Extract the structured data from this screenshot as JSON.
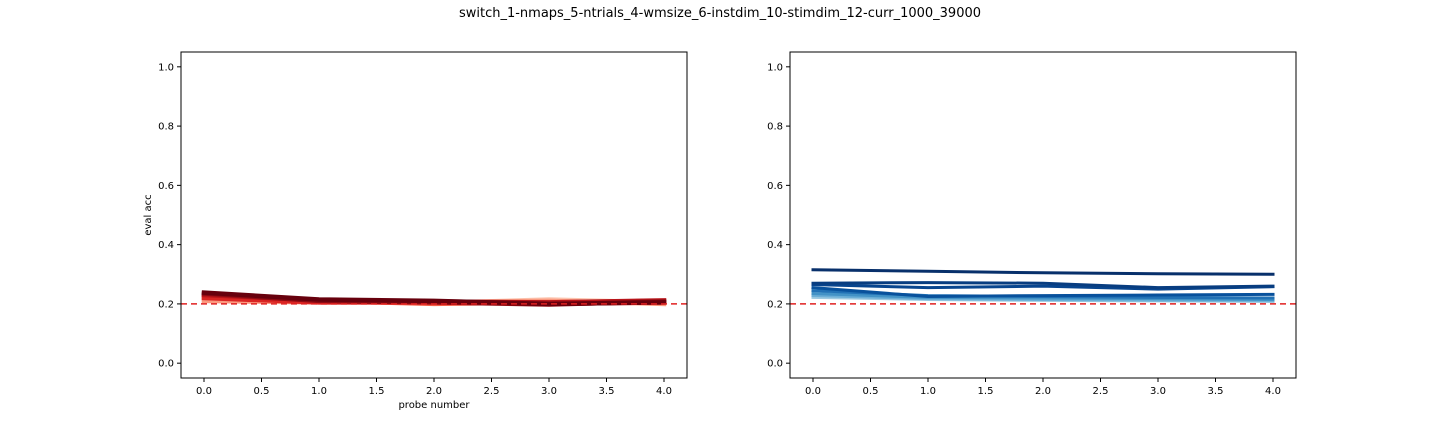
{
  "figure": {
    "title": "switch_1-nmaps_5-ntrials_4-wmsize_6-instdim_10-stimdim_12-curr_1000_39000"
  },
  "chart_data": [
    {
      "type": "line",
      "title": "",
      "xlabel": "probe number",
      "ylabel": "eval acc",
      "xlim": [
        -0.2,
        4.2
      ],
      "ylim": [
        -0.05,
        1.05
      ],
      "xticks": [
        "0.0",
        "0.5",
        "1.0",
        "1.5",
        "2.0",
        "2.5",
        "3.0",
        "3.5",
        "4.0"
      ],
      "yticks": [
        "0.0",
        "0.2",
        "0.4",
        "0.6",
        "0.8",
        "1.0"
      ],
      "grid": false,
      "legend": "none",
      "x": [
        0,
        1,
        2,
        3,
        4
      ],
      "reference_line": {
        "y": 0.2,
        "color": "#e02020",
        "style": "dashed"
      },
      "series": [
        {
          "values": [
            0.215,
            0.208,
            0.203,
            0.215,
            0.205
          ],
          "color": "#fcc5b0"
        },
        {
          "values": [
            0.21,
            0.205,
            0.205,
            0.21,
            0.2
          ],
          "color": "#fb9a80"
        },
        {
          "values": [
            0.225,
            0.21,
            0.2,
            0.205,
            0.21
          ],
          "color": "#f5604a"
        },
        {
          "values": [
            0.22,
            0.205,
            0.205,
            0.2,
            0.205
          ],
          "color": "#d92523"
        },
        {
          "values": [
            0.23,
            0.212,
            0.208,
            0.205,
            0.212
          ],
          "color": "#b81419"
        },
        {
          "values": [
            0.235,
            0.21,
            0.205,
            0.198,
            0.208
          ],
          "color": "#8f0a12"
        },
        {
          "values": [
            0.238,
            0.215,
            0.21,
            0.2,
            0.205
          ],
          "color": "#67000d"
        }
      ]
    },
    {
      "type": "line",
      "title": "",
      "xlabel": "",
      "ylabel": "",
      "xlim": [
        -0.2,
        4.2
      ],
      "ylim": [
        -0.05,
        1.05
      ],
      "xticks": [
        "0.0",
        "0.5",
        "1.0",
        "1.5",
        "2.0",
        "2.5",
        "3.0",
        "3.5",
        "4.0"
      ],
      "yticks": [
        "0.0",
        "0.2",
        "0.4",
        "0.6",
        "0.8",
        "1.0"
      ],
      "grid": false,
      "legend": "none",
      "x": [
        0,
        1,
        2,
        3,
        4
      ],
      "reference_line": {
        "y": 0.2,
        "color": "#e02020",
        "style": "dashed"
      },
      "series": [
        {
          "values": [
            0.222,
            0.215,
            0.212,
            0.21,
            0.208
          ],
          "color": "#9ecae1"
        },
        {
          "values": [
            0.228,
            0.218,
            0.215,
            0.213,
            0.212
          ],
          "color": "#6baed6"
        },
        {
          "values": [
            0.235,
            0.222,
            0.22,
            0.218,
            0.215
          ],
          "color": "#4292c6"
        },
        {
          "values": [
            0.245,
            0.228,
            0.225,
            0.222,
            0.22
          ],
          "color": "#2171b5"
        },
        {
          "values": [
            0.255,
            0.225,
            0.228,
            0.23,
            0.232
          ],
          "color": "#08519c"
        },
        {
          "values": [
            0.265,
            0.255,
            0.26,
            0.25,
            0.258
          ],
          "color": "#08458e"
        },
        {
          "values": [
            0.27,
            0.272,
            0.27,
            0.255,
            0.26
          ],
          "color": "#083d80"
        },
        {
          "values": [
            0.315,
            0.31,
            0.305,
            0.302,
            0.3
          ],
          "color": "#08306b"
        }
      ]
    }
  ]
}
